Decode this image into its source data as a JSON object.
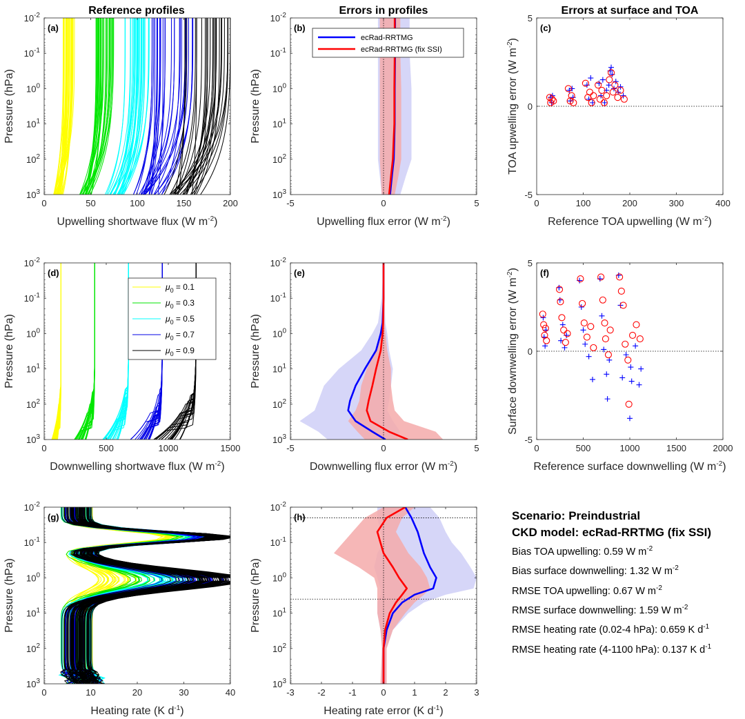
{
  "column_titles": [
    "Reference profiles",
    "Errors in profiles",
    "Errors at surface and TOA"
  ],
  "colors": {
    "mu_0.1": "#ffff00",
    "mu_0.3": "#00e600",
    "mu_0.5": "#00ffff",
    "mu_0.7": "#0000e6",
    "mu_0.9": "#000000",
    "ecrad": "#0000ff",
    "ecrad_fix": "#ff0000",
    "ecrad_band": "#c8c8f5",
    "ecrad_fix_band": "#f5aaaa"
  },
  "legend_mu": {
    "symbol": "μ",
    "subscript": "0",
    "entries": [
      " = 0.1",
      " = 0.3",
      " = 0.5",
      " = 0.7",
      " = 0.9"
    ]
  },
  "legend_models": [
    "ecRad-RRTMG",
    "ecRad-RRTMG (fix SSI)"
  ],
  "summary": {
    "scenario": "Scenario: Preindustrial",
    "ckd_model": "CKD model: ecRad-RRTMG (fix SSI)",
    "rows": [
      {
        "label": "Bias TOA upwelling: 0.59 W m",
        "sup": "-2"
      },
      {
        "label": "Bias surface downwelling: 1.32 W m",
        "sup": "-2"
      },
      {
        "label": "RMSE TOA upwelling: 0.67 W m",
        "sup": "-2"
      },
      {
        "label": "RMSE surface downwelling: 1.59 W m",
        "sup": "-2"
      },
      {
        "label": "RMSE heating rate (0.02-4 hPa):  0.659 K d",
        "sup": "-1"
      },
      {
        "label": "RMSE heating rate (4-1100 hPa):  0.137 K d",
        "sup": "-1"
      }
    ]
  },
  "chart_data": [
    {
      "id": "a",
      "panel_label": "(a)",
      "type": "line",
      "xlabel": "Upwelling shortwave flux (W m",
      "xlabel_sup": "-2",
      "ylabel": "Pressure (hPa)",
      "xlim": [
        0,
        200
      ],
      "ylim": [
        0.01,
        1000
      ],
      "yscale": "log-reversed",
      "xticks": [
        0,
        50,
        100,
        150,
        200
      ],
      "yticklabels": [
        "10",
        "10",
        "10",
        "10",
        "10",
        "10"
      ],
      "ytick_exponents": [
        "-2",
        "-1",
        "0",
        "1",
        "2",
        "3"
      ],
      "groups": [
        {
          "mu0": 0.1,
          "toa_range": [
            20,
            33
          ],
          "surface_range": [
            8,
            22
          ]
        },
        {
          "mu0": 0.3,
          "toa_range": [
            55,
            75
          ],
          "surface_range": [
            35,
            55
          ]
        },
        {
          "mu0": 0.5,
          "toa_range": [
            85,
            115
          ],
          "surface_range": [
            65,
            90
          ]
        },
        {
          "mu0": 0.7,
          "toa_range": [
            115,
            160
          ],
          "surface_range": [
            95,
            130
          ]
        },
        {
          "mu0": 0.9,
          "toa_range": [
            150,
            200
          ],
          "surface_range": [
            120,
            170
          ]
        }
      ]
    },
    {
      "id": "b",
      "panel_label": "(b)",
      "type": "line",
      "xlabel": "Upwelling flux error (W m",
      "xlabel_sup": "-2",
      "ylabel": "Pressure (hPa)",
      "xlim": [
        -5,
        5
      ],
      "ylim": [
        0.01,
        1000
      ],
      "yscale": "log-reversed",
      "xticks": [
        -5,
        0,
        5
      ],
      "yticklabels": [
        "10",
        "10",
        "10",
        "10",
        "10",
        "10"
      ],
      "ytick_exponents": [
        "-2",
        "-1",
        "0",
        "1",
        "2",
        "3"
      ],
      "series": [
        {
          "name": "ecRad-RRTMG",
          "pressure": [
            0.01,
            0.1,
            1,
            10,
            100,
            300,
            1000
          ],
          "mean": [
            0.62,
            0.62,
            0.6,
            0.6,
            0.55,
            0.45,
            0.35
          ],
          "lower": [
            -0.3,
            -0.3,
            -0.3,
            -0.3,
            -0.3,
            -0.2,
            -0.1
          ],
          "upper": [
            1.4,
            1.4,
            1.5,
            1.5,
            1.5,
            1.2,
            0.9
          ]
        },
        {
          "name": "ecRad-RRTMG (fix SSI)",
          "pressure": [
            0.01,
            0.1,
            1,
            10,
            100,
            300,
            1000
          ],
          "mean": [
            0.6,
            0.6,
            0.58,
            0.58,
            0.5,
            0.4,
            0.3
          ],
          "lower": [
            -0.2,
            -0.2,
            -0.2,
            -0.2,
            -0.2,
            -0.15,
            -0.1
          ],
          "upper": [
            0.9,
            0.9,
            0.95,
            0.95,
            0.95,
            0.8,
            0.6
          ]
        }
      ]
    },
    {
      "id": "c",
      "panel_label": "(c)",
      "type": "scatter",
      "xlabel": "Reference TOA upwelling (W m",
      "xlabel_sup": "-2",
      "ylabel": "TOA upwelling error (W m",
      "ylabel_sup": "-2",
      "xlim": [
        0,
        400
      ],
      "ylim": [
        -5,
        5
      ],
      "xticks": [
        0,
        100,
        200,
        300,
        400
      ],
      "yticks": [
        -5,
        0,
        5
      ],
      "zero_line": true,
      "series": [
        {
          "name": "ecRad-RRTMG",
          "marker": "+",
          "x": [
            30,
            32,
            34,
            70,
            72,
            76,
            78,
            108,
            112,
            116,
            120,
            134,
            138,
            142,
            146,
            150,
            155,
            158,
            160,
            162,
            166,
            170,
            175,
            180,
            186
          ],
          "y": [
            0.5,
            0.2,
            0.6,
            0.9,
            0.3,
            1.0,
            0.5,
            1.2,
            0.4,
            1.6,
            0.2,
            1.3,
            0.6,
            1.5,
            0.2,
            0.9,
            1.2,
            2.0,
            2.2,
            1.8,
            1.0,
            1.4,
            0.8,
            1.1,
            0.6
          ]
        },
        {
          "name": "ecRad-RRTMG (fix SSI)",
          "marker": "o",
          "x": [
            28,
            30,
            33,
            36,
            68,
            72,
            75,
            79,
            105,
            110,
            114,
            118,
            122,
            132,
            136,
            140,
            145,
            150,
            156,
            160,
            164,
            168,
            174,
            180,
            188
          ],
          "y": [
            0.5,
            0.2,
            0.4,
            0.3,
            1.0,
            0.3,
            0.6,
            0.2,
            1.3,
            0.5,
            0.8,
            0.2,
            0.6,
            1.2,
            0.4,
            0.9,
            0.2,
            0.6,
            1.5,
            1.9,
            0.8,
            1.2,
            0.5,
            0.9,
            0.4
          ]
        }
      ]
    },
    {
      "id": "d",
      "panel_label": "(d)",
      "type": "line",
      "xlabel": "Downwelling shortwave flux (W m",
      "xlabel_sup": "-2",
      "ylabel": "Pressure (hPa)",
      "xlim": [
        0,
        1500
      ],
      "ylim": [
        0.01,
        1000
      ],
      "yscale": "log-reversed",
      "xticks": [
        0,
        500,
        1000,
        1500
      ],
      "yticklabels": [
        "10",
        "10",
        "10",
        "10",
        "10",
        "10"
      ],
      "ytick_exponents": [
        "-2",
        "-1",
        "0",
        "1",
        "2",
        "3"
      ],
      "groups": [
        {
          "mu0": 0.1,
          "toa": 136,
          "surface_range": [
            60,
            110
          ]
        },
        {
          "mu0": 0.3,
          "toa": 408,
          "surface_range": [
            240,
            340
          ]
        },
        {
          "mu0": 0.5,
          "toa": 680,
          "surface_range": [
            460,
            600
          ]
        },
        {
          "mu0": 0.7,
          "toa": 952,
          "surface_range": [
            680,
            860
          ]
        },
        {
          "mu0": 0.9,
          "toa": 1224,
          "surface_range": [
            880,
            1100
          ]
        }
      ]
    },
    {
      "id": "e",
      "panel_label": "(e)",
      "type": "line",
      "xlabel": "Downwelling flux error (W m",
      "xlabel_sup": "-2",
      "ylabel": "Pressure (hPa)",
      "xlim": [
        -5,
        5
      ],
      "ylim": [
        0.01,
        1000
      ],
      "yscale": "log-reversed",
      "xticks": [
        -5,
        0,
        5
      ],
      "yticklabels": [
        "10",
        "10",
        "10",
        "10",
        "10",
        "10"
      ],
      "ytick_exponents": [
        "-2",
        "-1",
        "0",
        "1",
        "2",
        "3"
      ],
      "series": [
        {
          "name": "ecRad-RRTMG",
          "pressure": [
            0.01,
            0.1,
            0.5,
            1,
            3,
            10,
            30,
            80,
            150,
            300,
            600,
            1000
          ],
          "mean": [
            0,
            0,
            -0.05,
            -0.15,
            -0.4,
            -1.0,
            -1.5,
            -1.8,
            -1.9,
            -1.5,
            -0.6,
            0.1
          ],
          "lower": [
            0,
            -0.1,
            -0.3,
            -0.6,
            -1.2,
            -2.4,
            -3.2,
            -3.5,
            -3.7,
            -4.5,
            -3.5,
            -3.0
          ],
          "upper": [
            0,
            0.05,
            0.1,
            0.2,
            0.3,
            0.5,
            0.4,
            0.3,
            0.2,
            0.5,
            0.9,
            0.7
          ]
        },
        {
          "name": "ecRad-RRTMG (fix SSI)",
          "pressure": [
            0.01,
            0.1,
            0.5,
            1,
            3,
            10,
            30,
            80,
            150,
            300,
            600,
            1000
          ],
          "mean": [
            0,
            0,
            -0.02,
            -0.05,
            -0.15,
            -0.4,
            -0.6,
            -0.8,
            -0.9,
            -0.7,
            0.3,
            1.3
          ],
          "lower": [
            0,
            -0.05,
            -0.1,
            -0.2,
            -0.4,
            -0.9,
            -1.2,
            -1.3,
            -1.5,
            -1.9,
            -1.4,
            -1.0
          ],
          "upper": [
            0,
            0.05,
            0.05,
            0.1,
            0.2,
            0.4,
            0.4,
            0.5,
            0.6,
            1.1,
            2.8,
            3.2
          ]
        }
      ]
    },
    {
      "id": "f",
      "panel_label": "(f)",
      "type": "scatter",
      "xlabel": "Reference surface downwelling (W m",
      "xlabel_sup": "-2",
      "ylabel": "Surface downwelling error (W m",
      "ylabel_sup": "-2",
      "xlim": [
        0,
        2000
      ],
      "ylim": [
        -5,
        5
      ],
      "xticks": [
        0,
        500,
        1000,
        1500,
        2000
      ],
      "yticks": [
        -5,
        0,
        5
      ],
      "zero_line": true,
      "series": [
        {
          "name": "ecRad-RRTMG",
          "marker": "+",
          "x": [
            70,
            80,
            90,
            100,
            240,
            250,
            260,
            280,
            300,
            320,
            460,
            480,
            500,
            520,
            560,
            600,
            680,
            700,
            720,
            750,
            760,
            780,
            880,
            900,
            920,
            960,
            1000,
            1010,
            1020,
            1060,
            1100,
            1120
          ],
          "y": [
            1.9,
            0.8,
            0.3,
            1.2,
            3.6,
            2.9,
            0.6,
            1.5,
            0.2,
            0.9,
            4.0,
            2.5,
            1.2,
            0.4,
            -0.3,
            -1.6,
            4.1,
            2.0,
            0.1,
            -1.3,
            -2.7,
            -0.5,
            4.3,
            2.6,
            -1.5,
            -0.2,
            -3.8,
            -0.9,
            -1.7,
            0.3,
            -1.9,
            -1.0
          ]
        },
        {
          "name": "ecRad-RRTMG (fix SSI)",
          "marker": "o",
          "x": [
            65,
            75,
            85,
            95,
            105,
            245,
            255,
            270,
            290,
            310,
            330,
            470,
            490,
            510,
            540,
            580,
            610,
            690,
            710,
            730,
            740,
            770,
            790,
            890,
            910,
            930,
            950,
            980,
            990,
            1030,
            1070,
            1110
          ],
          "y": [
            2.1,
            1.5,
            0.9,
            1.3,
            0.6,
            3.5,
            2.8,
            1.9,
            1.2,
            0.5,
            1.0,
            4.1,
            2.7,
            1.6,
            0.8,
            1.4,
            0.2,
            4.2,
            2.9,
            1.6,
            0.7,
            -0.2,
            1.2,
            4.2,
            3.4,
            2.6,
            0.4,
            -0.5,
            -3.0,
            0.9,
            1.5,
            0.7
          ]
        }
      ]
    },
    {
      "id": "g",
      "panel_label": "(g)",
      "type": "line",
      "xlabel": "Heating rate (K d",
      "xlabel_sup": "-1",
      "ylabel": "Pressure (hPa)",
      "xlim": [
        0,
        40
      ],
      "ylim": [
        0.01,
        1000
      ],
      "yscale": "log-reversed",
      "xticks": [
        0,
        10,
        20,
        30,
        40
      ],
      "yticklabels": [
        "10",
        "10",
        "10",
        "10",
        "10",
        "10"
      ],
      "ytick_exponents": [
        "-2",
        "-1",
        "0",
        "1",
        "2",
        "3"
      ],
      "groups": [
        {
          "mu0": 0.1,
          "peak_pressure": 0.07,
          "peak_range": [
            24,
            36
          ],
          "stratopause_range": [
            6,
            10
          ]
        },
        {
          "mu0": 0.3,
          "peak_pressure": 0.07,
          "peak_range": [
            28,
            38
          ],
          "stratopause_range": [
            12,
            20
          ]
        },
        {
          "mu0": 0.5,
          "peak_pressure": 0.07,
          "peak_range": [
            30,
            40
          ],
          "stratopause_range": [
            16,
            26
          ]
        },
        {
          "mu0": 0.7,
          "peak_pressure": 0.07,
          "peak_range": [
            32,
            40
          ],
          "stratopause_range": [
            20,
            33
          ]
        },
        {
          "mu0": 0.9,
          "peak_pressure": 0.07,
          "peak_range": [
            34,
            40
          ],
          "stratopause_range": [
            22,
            35
          ]
        }
      ]
    },
    {
      "id": "h",
      "panel_label": "(h)",
      "type": "line",
      "xlabel": "Heating rate error (K d",
      "xlabel_sup": "-1",
      "ylabel": "Pressure (hPa)",
      "xlim": [
        -3,
        3
      ],
      "ylim": [
        0.01,
        1000
      ],
      "yscale": "log-reversed",
      "xticks": [
        -3,
        -2,
        -1,
        0,
        1,
        2,
        3
      ],
      "yticklabels": [
        "10",
        "10",
        "10",
        "10",
        "10",
        "10"
      ],
      "ytick_exponents": [
        "-2",
        "-1",
        "0",
        "1",
        "2",
        "3"
      ],
      "hlines_pressure": [
        0.02,
        4
      ],
      "series": [
        {
          "name": "ecRad-RRTMG",
          "pressure": [
            0.01,
            0.02,
            0.05,
            0.1,
            0.2,
            0.5,
            1,
            2,
            3,
            5,
            10,
            30,
            100,
            1000
          ],
          "mean": [
            0.7,
            0.9,
            1.1,
            1.2,
            1.3,
            1.5,
            1.7,
            1.6,
            1.0,
            0.6,
            0.3,
            0.1,
            0.0,
            0.0
          ],
          "lower": [
            -0.2,
            -0.2,
            -0.1,
            0.0,
            -0.2,
            -0.3,
            -0.2,
            -0.1,
            -0.1,
            -0.2,
            -0.2,
            -0.1,
            -0.05,
            -0.05
          ],
          "upper": [
            1.5,
            1.8,
            2.0,
            2.2,
            2.5,
            2.8,
            3.0,
            2.9,
            2.0,
            1.3,
            0.8,
            0.3,
            0.1,
            0.1
          ]
        },
        {
          "name": "ecRad-RRTMG (fix SSI)",
          "pressure": [
            0.01,
            0.02,
            0.05,
            0.1,
            0.2,
            0.5,
            1,
            2,
            3,
            5,
            10,
            30,
            100,
            1000
          ],
          "mean": [
            0.7,
            0.1,
            -0.2,
            -0.1,
            0.0,
            0.3,
            0.5,
            0.75,
            0.6,
            0.4,
            0.2,
            0.05,
            0.0,
            0.0
          ],
          "lower": [
            0.0,
            -0.6,
            -1.0,
            -1.3,
            -1.6,
            -0.8,
            -0.3,
            -0.2,
            -0.2,
            -0.2,
            -0.2,
            -0.1,
            -0.05,
            -0.1
          ],
          "upper": [
            1.0,
            0.6,
            0.4,
            0.6,
            0.8,
            1.2,
            1.4,
            1.5,
            1.3,
            1.0,
            0.7,
            0.3,
            0.1,
            0.1
          ]
        }
      ]
    }
  ]
}
